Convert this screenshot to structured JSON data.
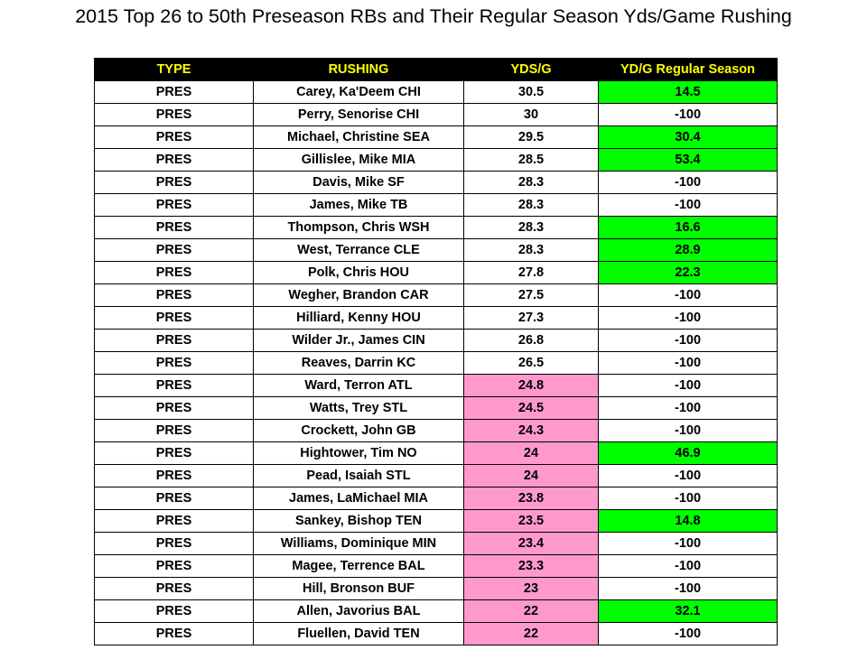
{
  "title": "2015 Top 26 to 50th Preseason RBs and Their Regular Season Yds/Game Rushing",
  "colors": {
    "header_bg": "#000000",
    "header_text": "#ffff00",
    "low_preseason": "#ff99cc",
    "regular_season_played": "#00ff00"
  },
  "chart_data": {
    "type": "table",
    "title": "2015 Top 26 to 50th Preseason RBs and Their Regular Season Yds/Game Rushing",
    "columns": [
      "TYPE",
      "RUSHING",
      "YDS/G",
      "YD/G Regular Season"
    ],
    "rows": [
      {
        "type": "PRES",
        "player": "Carey, Ka'Deem  CHI",
        "ydsg": "30.5",
        "reg": "14.5",
        "ydsg_hl": "",
        "reg_hl": "green"
      },
      {
        "type": "PRES",
        "player": "Perry, Senorise  CHI",
        "ydsg": "30",
        "reg": "-100",
        "ydsg_hl": "",
        "reg_hl": ""
      },
      {
        "type": "PRES",
        "player": "Michael, Christine  SEA",
        "ydsg": "29.5",
        "reg": "30.4",
        "ydsg_hl": "",
        "reg_hl": "green"
      },
      {
        "type": "PRES",
        "player": "Gillislee, Mike  MIA",
        "ydsg": "28.5",
        "reg": "53.4",
        "ydsg_hl": "",
        "reg_hl": "green"
      },
      {
        "type": "PRES",
        "player": "Davis, Mike  SF",
        "ydsg": "28.3",
        "reg": "-100",
        "ydsg_hl": "",
        "reg_hl": ""
      },
      {
        "type": "PRES",
        "player": "James, Mike  TB",
        "ydsg": "28.3",
        "reg": "-100",
        "ydsg_hl": "",
        "reg_hl": ""
      },
      {
        "type": "PRES",
        "player": "Thompson, Chris  WSH",
        "ydsg": "28.3",
        "reg": "16.6",
        "ydsg_hl": "",
        "reg_hl": "green"
      },
      {
        "type": "PRES",
        "player": "West, Terrance  CLE",
        "ydsg": "28.3",
        "reg": "28.9",
        "ydsg_hl": "",
        "reg_hl": "green"
      },
      {
        "type": "PRES",
        "player": "Polk, Chris  HOU",
        "ydsg": "27.8",
        "reg": "22.3",
        "ydsg_hl": "",
        "reg_hl": "green"
      },
      {
        "type": "PRES",
        "player": "Wegher, Brandon  CAR",
        "ydsg": "27.5",
        "reg": "-100",
        "ydsg_hl": "",
        "reg_hl": ""
      },
      {
        "type": "PRES",
        "player": "Hilliard, Kenny  HOU",
        "ydsg": "27.3",
        "reg": "-100",
        "ydsg_hl": "",
        "reg_hl": ""
      },
      {
        "type": "PRES",
        "player": "Wilder Jr., James  CIN",
        "ydsg": "26.8",
        "reg": "-100",
        "ydsg_hl": "",
        "reg_hl": ""
      },
      {
        "type": "PRES",
        "player": "Reaves, Darrin  KC",
        "ydsg": "26.5",
        "reg": "-100",
        "ydsg_hl": "",
        "reg_hl": ""
      },
      {
        "type": "PRES",
        "player": "Ward, Terron  ATL",
        "ydsg": "24.8",
        "reg": "-100",
        "ydsg_hl": "pink",
        "reg_hl": ""
      },
      {
        "type": "PRES",
        "player": "Watts, Trey  STL",
        "ydsg": "24.5",
        "reg": "-100",
        "ydsg_hl": "pink",
        "reg_hl": ""
      },
      {
        "type": "PRES",
        "player": "Crockett, John  GB",
        "ydsg": "24.3",
        "reg": "-100",
        "ydsg_hl": "pink",
        "reg_hl": ""
      },
      {
        "type": "PRES",
        "player": "Hightower, Tim  NO",
        "ydsg": "24",
        "reg": "46.9",
        "ydsg_hl": "pink",
        "reg_hl": "green"
      },
      {
        "type": "PRES",
        "player": "Pead, Isaiah  STL",
        "ydsg": "24",
        "reg": "-100",
        "ydsg_hl": "pink",
        "reg_hl": ""
      },
      {
        "type": "PRES",
        "player": "James, LaMichael  MIA",
        "ydsg": "23.8",
        "reg": "-100",
        "ydsg_hl": "pink",
        "reg_hl": ""
      },
      {
        "type": "PRES",
        "player": "Sankey, Bishop  TEN",
        "ydsg": "23.5",
        "reg": "14.8",
        "ydsg_hl": "pink",
        "reg_hl": "green"
      },
      {
        "type": "PRES",
        "player": "Williams, Dominique  MIN",
        "ydsg": "23.4",
        "reg": "-100",
        "ydsg_hl": "pink",
        "reg_hl": ""
      },
      {
        "type": "PRES",
        "player": "Magee, Terrence  BAL",
        "ydsg": "23.3",
        "reg": "-100",
        "ydsg_hl": "pink",
        "reg_hl": ""
      },
      {
        "type": "PRES",
        "player": "Hill, Bronson  BUF",
        "ydsg": "23",
        "reg": "-100",
        "ydsg_hl": "pink",
        "reg_hl": ""
      },
      {
        "type": "PRES",
        "player": "Allen, Javorius  BAL",
        "ydsg": "22",
        "reg": "32.1",
        "ydsg_hl": "pink",
        "reg_hl": "green"
      },
      {
        "type": "PRES",
        "player": "Fluellen, David  TEN",
        "ydsg": "22",
        "reg": "-100",
        "ydsg_hl": "pink",
        "reg_hl": ""
      }
    ]
  }
}
